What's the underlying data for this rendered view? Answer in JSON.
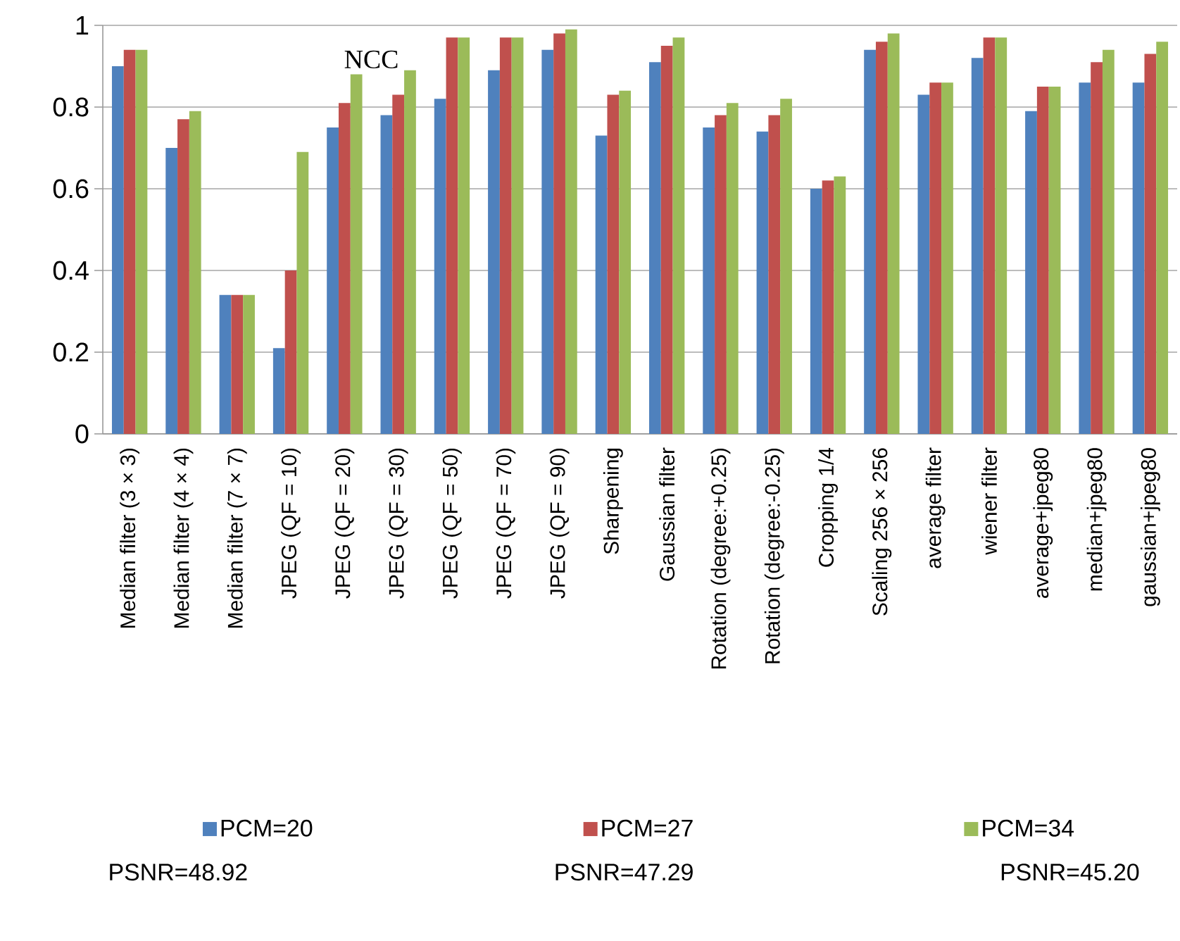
{
  "chart_data": {
    "type": "bar",
    "title": "NCC",
    "categories": [
      "Median filter (3 × 3)",
      "Median filter (4 × 4)",
      "Median filter (7 × 7)",
      "JPEG (QF = 10)",
      "JPEG (QF = 20)",
      "JPEG (QF = 30)",
      "JPEG (QF = 50)",
      "JPEG (QF = 70)",
      "JPEG (QF = 90)",
      "Sharpening",
      "Gaussian filter",
      "Rotation (degree:+0.25)",
      "Rotation (degree:-0.25)",
      "Cropping 1/4",
      "Scaling 256 × 256",
      "average filter",
      "wiener filter",
      "average+jpeg80",
      "median+jpeg80",
      "gaussian+jpeg80"
    ],
    "series": [
      {
        "name": "PCM=20",
        "color": "#4f81bd",
        "values": [
          0.9,
          0.7,
          0.34,
          0.21,
          0.75,
          0.78,
          0.82,
          0.89,
          0.94,
          0.73,
          0.91,
          0.75,
          0.74,
          0.6,
          0.94,
          0.83,
          0.92,
          0.79,
          0.86,
          0.86
        ]
      },
      {
        "name": "PCM=27",
        "color": "#c0504d",
        "values": [
          0.94,
          0.77,
          0.34,
          0.4,
          0.81,
          0.83,
          0.97,
          0.97,
          0.98,
          0.83,
          0.95,
          0.78,
          0.78,
          0.62,
          0.96,
          0.86,
          0.97,
          0.85,
          0.91,
          0.93
        ]
      },
      {
        "name": "PCM=34",
        "color": "#9bbb59",
        "values": [
          0.94,
          0.79,
          0.34,
          0.69,
          0.88,
          0.89,
          0.97,
          0.97,
          0.99,
          0.84,
          0.97,
          0.81,
          0.82,
          0.63,
          0.98,
          0.86,
          0.97,
          0.85,
          0.94,
          0.96
        ]
      }
    ],
    "ylim": [
      0,
      1
    ],
    "yticks": [
      0,
      {
        "value": 0.2,
        "label": "0.2"
      },
      {
        "value": 0.4,
        "label": "0.4"
      },
      {
        "value": 0.6,
        "label": "0.6"
      },
      {
        "value": 0.8,
        "label": "0.8"
      },
      1
    ],
    "grid": "y",
    "legend": "bottom",
    "annotations": [
      "PSNR=48.92",
      "PSNR=47.29",
      "PSNR=45.20"
    ]
  }
}
